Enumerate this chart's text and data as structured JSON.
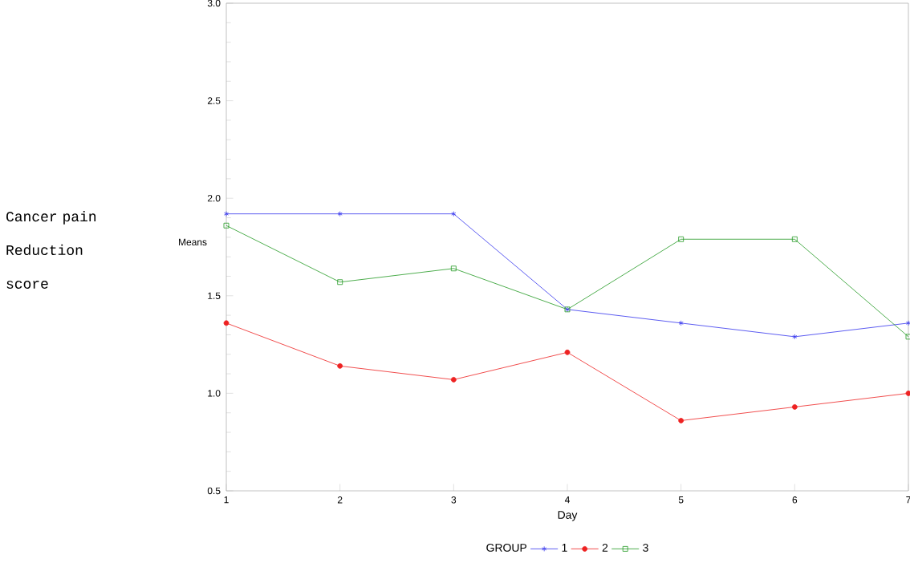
{
  "chart_data": {
    "type": "line",
    "xlabel": "Day",
    "ylabel": "Means",
    "legend_title": "GROUP",
    "annotations": [
      "Cancer pain Reduction score"
    ],
    "x": [
      1,
      2,
      3,
      4,
      5,
      6,
      7
    ],
    "series": [
      {
        "name": "1",
        "color": "#3333ee",
        "marker": "cross",
        "values": [
          1.92,
          1.92,
          1.92,
          1.43,
          1.36,
          1.29,
          1.36
        ]
      },
      {
        "name": "2",
        "color": "#ee2222",
        "marker": "circle",
        "values": [
          1.36,
          1.14,
          1.07,
          1.21,
          0.86,
          0.93,
          1.0
        ]
      },
      {
        "name": "3",
        "color": "#229922",
        "marker": "square",
        "values": [
          1.86,
          1.57,
          1.64,
          1.43,
          1.79,
          1.79,
          1.29
        ]
      }
    ],
    "xlim": [
      1,
      7
    ],
    "xticks": [
      1,
      2,
      3,
      4,
      5,
      6,
      7
    ],
    "ylim": [
      0.5,
      3.0
    ],
    "yticks": [
      0.5,
      {
        "value": 1.0,
        "label": "1.0"
      },
      1.5,
      {
        "value": 2.0,
        "label": "2.0"
      },
      2.5,
      {
        "value": 3.0,
        "label": "3.0"
      }
    ],
    "legend": "bottom",
    "grid": false,
    "line_style": "solid"
  }
}
